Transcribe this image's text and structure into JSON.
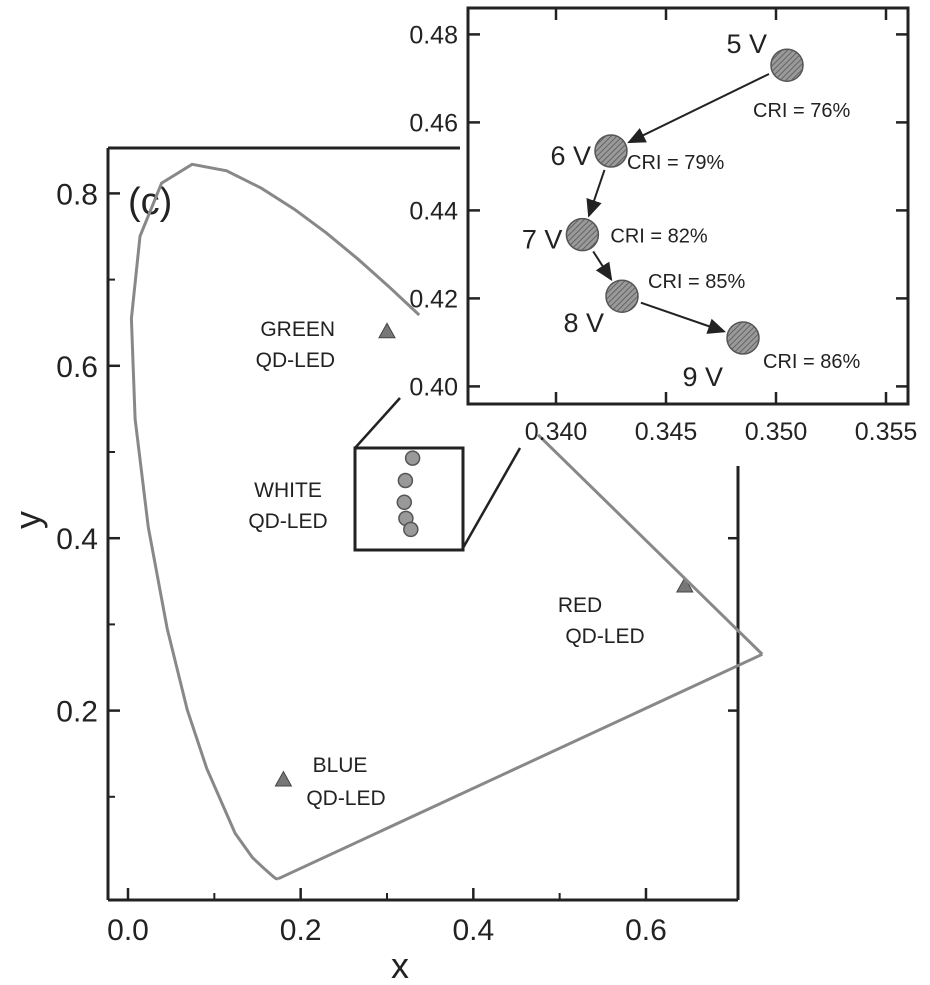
{
  "chart_data": [
    {
      "type": "scatter",
      "panel_label": "(c)",
      "xlabel": "x",
      "ylabel": "y",
      "xlim": [
        -0.02,
        0.7
      ],
      "ylim": [
        -0.02,
        0.85
      ],
      "x_ticks": [
        "0.0",
        "0.2",
        "0.4",
        "0.6"
      ],
      "y_ticks": [
        "0.2",
        "0.4",
        "0.6",
        "0.8"
      ],
      "spectral_locus": {
        "x": [
          0.1741,
          0.1714,
          0.1689,
          0.1644,
          0.1566,
          0.144,
          0.1241,
          0.0913,
          0.0687,
          0.0454,
          0.0235,
          0.0082,
          0.0039,
          0.0139,
          0.0389,
          0.0743,
          0.1142,
          0.1547,
          0.1929,
          0.2296,
          0.2658,
          0.3016,
          0.3373
        ],
        "y": [
          0.005,
          0.0051,
          0.0069,
          0.0109,
          0.0177,
          0.0297,
          0.0578,
          0.1327,
          0.2007,
          0.295,
          0.4127,
          0.5384,
          0.6548,
          0.7502,
          0.812,
          0.8338,
          0.8262,
          0.8059,
          0.7816,
          0.7543,
          0.7243,
          0.6923,
          0.6589
        ]
      },
      "series": [
        {
          "name": "GREEN QD-LED",
          "x": [
            0.3
          ],
          "y": [
            0.64
          ]
        },
        {
          "name": "RED QD-LED",
          "x": [
            0.645
          ],
          "y": [
            0.345
          ]
        },
        {
          "name": "BLUE QD-LED",
          "x": [
            0.18
          ],
          "y": [
            0.12
          ]
        },
        {
          "name": "WHITE QD-LED",
          "x": [
            0.3505,
            0.3425,
            0.3412,
            0.343,
            0.3485
          ],
          "y": [
            0.473,
            0.4535,
            0.4345,
            0.4205,
            0.411
          ]
        }
      ],
      "gamut_triangle": {
        "x": [
          0.64,
          0.3,
          0.15,
          0.64
        ],
        "y": [
          0.33,
          0.6,
          0.06,
          0.33
        ]
      },
      "annotations": {
        "green": [
          "GREEN",
          "QD-LED"
        ],
        "white": [
          "WHITE",
          "QD-LED"
        ],
        "red": [
          "RED",
          "QD-LED"
        ],
        "blue": [
          "BLUE",
          "QD-LED"
        ]
      }
    },
    {
      "type": "scatter",
      "title": "",
      "xlim": [
        0.336,
        0.356
      ],
      "ylim": [
        0.396,
        0.486
      ],
      "x_ticks": [
        "0.340",
        "0.345",
        "0.350",
        "0.355"
      ],
      "y_ticks": [
        "0.40",
        "0.42",
        "0.44",
        "0.46",
        "0.48"
      ],
      "points": [
        {
          "x": 0.3505,
          "y": 0.473,
          "voltage": "5 V",
          "cri": "CRI = 76%"
        },
        {
          "x": 0.3425,
          "y": 0.4535,
          "voltage": "6 V",
          "cri": "CRI = 79%"
        },
        {
          "x": 0.3412,
          "y": 0.4345,
          "voltage": "7 V",
          "cri": "CRI = 82%"
        },
        {
          "x": 0.343,
          "y": 0.4205,
          "voltage": "8 V",
          "cri": "CRI = 85%"
        },
        {
          "x": 0.3485,
          "y": 0.411,
          "voltage": "9 V",
          "cri": "CRI = 86%"
        }
      ]
    }
  ]
}
